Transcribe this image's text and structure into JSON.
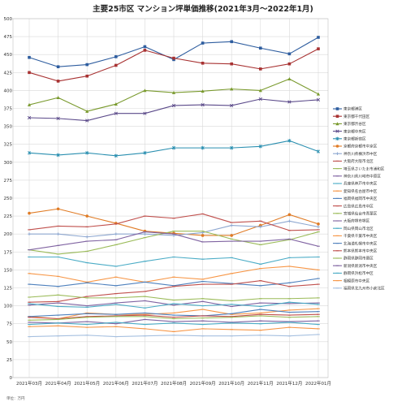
{
  "chart_data": {
    "type": "line",
    "title": "主要25市区 マンション坪単価推移(2021年3月～2022年1月)",
    "unit_note": "単位：万円",
    "xlabel": "",
    "ylabel": "",
    "ylim": [
      0,
      500
    ],
    "yticks": [
      0,
      25,
      50,
      75,
      100,
      125,
      150,
      175,
      200,
      225,
      250,
      275,
      300,
      325,
      350,
      375,
      400,
      425,
      450,
      475,
      500
    ],
    "grid": true,
    "legend_position": "right",
    "x": [
      "2021年03月",
      "2021年04月",
      "2021年05月",
      "2021年06月",
      "2021年07月",
      "2021年08月",
      "2021年09月",
      "2021年10月",
      "2021年11月",
      "2021年12月",
      "2022年01月"
    ],
    "series": [
      {
        "name": "東京都港区",
        "color": "#2e5d9f",
        "marker": "square",
        "values": [
          446,
          433,
          436,
          447,
          461,
          443,
          466,
          468,
          459,
          451,
          474
        ]
      },
      {
        "name": "東京都千代田区",
        "color": "#a83232",
        "marker": "square",
        "values": [
          425,
          413,
          420,
          435,
          456,
          445,
          438,
          437,
          430,
          437,
          458
        ]
      },
      {
        "name": "東京都渋谷区",
        "color": "#7a9a2e",
        "marker": "triangle",
        "values": [
          380,
          390,
          371,
          381,
          400,
          397,
          399,
          402,
          400,
          416,
          395
        ]
      },
      {
        "name": "東京都中央区",
        "color": "#5b4a8a",
        "marker": "x",
        "values": [
          362,
          361,
          358,
          368,
          368,
          379,
          380,
          379,
          388,
          384,
          387
        ]
      },
      {
        "name": "東京都新宿区",
        "color": "#2a8fb0",
        "marker": "star",
        "values": [
          313,
          310,
          313,
          309,
          313,
          320,
          320,
          320,
          322,
          330,
          315
        ]
      },
      {
        "name": "京都府京都市中京区",
        "color": "#e07b25",
        "marker": "circle",
        "values": [
          229,
          235,
          225,
          215,
          204,
          201,
          198,
          198,
          212,
          227,
          214
        ]
      },
      {
        "name": "神奈川県横浜市中区",
        "color": "#8da7d0",
        "marker": "plus",
        "values": [
          200,
          200,
          196,
          200,
          200,
          198,
          202,
          212,
          210,
          218,
          210
        ]
      },
      {
        "name": "大阪府大阪市北区",
        "color": "#c0504d",
        "marker": "dash",
        "values": [
          206,
          211,
          210,
          214,
          225,
          222,
          228,
          216,
          218,
          205,
          206
        ]
      },
      {
        "name": "埼玉県さいたま市浦和区",
        "color": "#9bbb59",
        "marker": "dash",
        "values": [
          178,
          172,
          176,
          185,
          195,
          204,
          204,
          193,
          185,
          192,
          203
        ]
      },
      {
        "name": "神奈川県川崎市中原区",
        "color": "#8064a2",
        "marker": "dash",
        "values": [
          178,
          184,
          190,
          192,
          203,
          200,
          189,
          190,
          190,
          193,
          183
        ]
      },
      {
        "name": "兵庫県神戸市中央区",
        "color": "#4bacc6",
        "marker": "dash",
        "values": [
          168,
          168,
          160,
          155,
          162,
          168,
          165,
          167,
          158,
          167,
          168
        ]
      },
      {
        "name": "愛知県名古屋市中区",
        "color": "#f79646",
        "marker": "dash",
        "values": [
          145,
          141,
          133,
          140,
          133,
          140,
          137,
          145,
          152,
          155,
          150
        ]
      },
      {
        "name": "福岡県福岡市中央区",
        "color": "#4f81bd",
        "marker": "dash",
        "values": [
          130,
          127,
          132,
          128,
          133,
          128,
          134,
          131,
          128,
          132,
          138
        ]
      },
      {
        "name": "広島県広島市中区",
        "color": "#c0504d",
        "marker": "dash",
        "values": [
          105,
          106,
          113,
          117,
          120,
          127,
          130,
          130,
          135,
          127,
          130
        ]
      },
      {
        "name": "宮城県仙台市青葉区",
        "color": "#9bbb59",
        "marker": "dash",
        "values": [
          112,
          115,
          111,
          111,
          113,
          108,
          110,
          107,
          110,
          110,
          111
        ]
      },
      {
        "name": "大阪府堺市堺区",
        "color": "#8064a2",
        "marker": "dash",
        "values": [
          101,
          104,
          100,
          104,
          107,
          101,
          106,
          99,
          104,
          103,
          104
        ]
      },
      {
        "name": "岡山県岡山市北区",
        "color": "#4bacc6",
        "marker": "dash",
        "values": [
          103,
          99,
          98,
          102,
          97,
          103,
          100,
          102,
          99,
          105,
          102
        ]
      },
      {
        "name": "千葉県千葉市中央区",
        "color": "#f79646",
        "marker": "dash",
        "values": [
          85,
          82,
          90,
          88,
          88,
          90,
          95,
          88,
          90,
          94,
          96
        ]
      },
      {
        "name": "北海道札幌市中央区",
        "color": "#4f81bd",
        "marker": "dash",
        "values": [
          85,
          87,
          89,
          88,
          90,
          87,
          86,
          89,
          95,
          91,
          92
        ]
      },
      {
        "name": "熊本県熊本市中央区",
        "color": "#c0504d",
        "marker": "dash",
        "values": [
          84,
          82,
          85,
          86,
          87,
          84,
          86,
          85,
          88,
          87,
          88
        ]
      },
      {
        "name": "静岡県静岡市葵区",
        "color": "#9bbb59",
        "marker": "dash",
        "values": [
          80,
          81,
          84,
          85,
          85,
          82,
          83,
          84,
          86,
          84,
          85
        ]
      },
      {
        "name": "新潟県新潟市中央区",
        "color": "#8064a2",
        "marker": "dash",
        "values": [
          77,
          76,
          78,
          75,
          81,
          78,
          79,
          77,
          79,
          78,
          79
        ]
      },
      {
        "name": "静岡県浜松市中区",
        "color": "#4bacc6",
        "marker": "dash",
        "values": [
          74,
          76,
          74,
          77,
          74,
          76,
          74,
          76,
          75,
          77,
          74
        ]
      },
      {
        "name": "相模原市中央区",
        "color": "#f79646",
        "marker": "dash",
        "values": [
          71,
          72,
          70,
          71,
          68,
          64,
          68,
          67,
          66,
          70,
          68
        ]
      },
      {
        "name": "福岡県北九州市小倉北区",
        "color": "#a6c0e0",
        "marker": "dash",
        "values": [
          57,
          58,
          59,
          57,
          58,
          59,
          58,
          58,
          59,
          58,
          60
        ]
      }
    ]
  }
}
